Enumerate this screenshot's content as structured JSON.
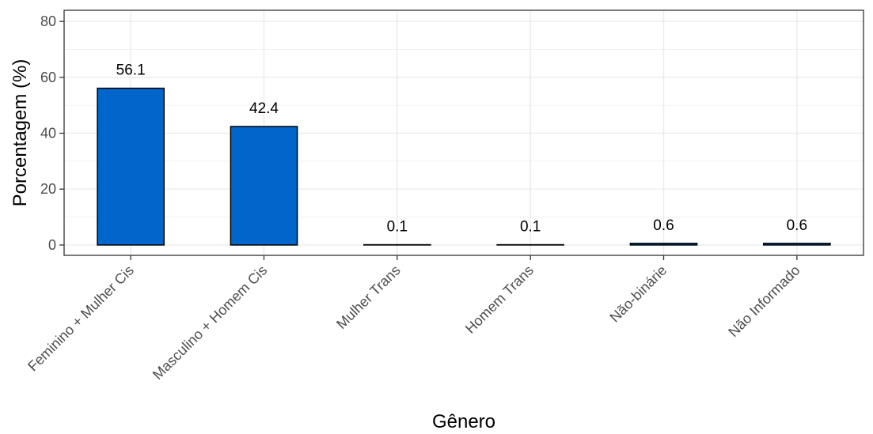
{
  "chart_data": {
    "type": "bar",
    "title": "",
    "xlabel": "Gênero",
    "ylabel": "Porcentagem (%)",
    "ylim": [
      -3.7,
      84
    ],
    "yticks": [
      0,
      20,
      40,
      60,
      80
    ],
    "grid": true,
    "legend": "none",
    "categories": [
      "Feminino + Mulher Cis",
      "Masculino + Homem Cis",
      "Mulher Trans",
      "Homem Trans",
      "Não-binárie",
      "Não Informado"
    ],
    "values": [
      56.1,
      42.4,
      0.1,
      0.1,
      0.6,
      0.6
    ],
    "data_labels": [
      "56.1",
      "42.4",
      "0.1",
      "0.1",
      "0.6",
      "0.6"
    ],
    "bar_color": "#0066cc",
    "bar_outline_color": "#000000"
  }
}
